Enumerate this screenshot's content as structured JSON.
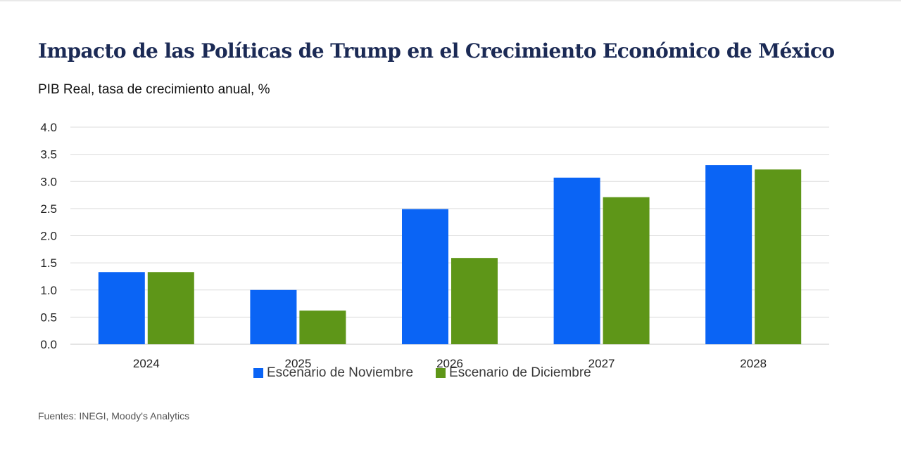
{
  "header": {
    "title": "Impacto de las Políticas de Trump en el Crecimiento Económico de México",
    "subtitle": "PIB Real, tasa de crecimiento anual,  %"
  },
  "footer": {
    "source": "Fuentes: INEGI, Moody's Analytics"
  },
  "colors": {
    "noviembre": "#0a64f5",
    "diciembre": "#5e9618",
    "grid": "#dcdcdc",
    "title": "#1b2a55"
  },
  "chart_data": {
    "type": "bar",
    "title": "Impacto de las Políticas de Trump en el Crecimiento Económico de México",
    "subtitle": "PIB Real, tasa de crecimiento anual,  %",
    "xlabel": "",
    "ylabel": "",
    "categories": [
      "2024",
      "2025",
      "2026",
      "2027",
      "2028"
    ],
    "series": [
      {
        "name": "Escenario de Noviembre",
        "values": [
          1.33,
          1.0,
          2.49,
          3.07,
          3.3
        ]
      },
      {
        "name": "Escenario de Diciembre",
        "values": [
          1.33,
          0.62,
          1.59,
          2.71,
          3.22
        ]
      }
    ],
    "ylim": [
      0,
      4.0
    ],
    "yticks": [
      "0.0",
      "0.5",
      "1.0",
      "1.5",
      "2.0",
      "2.5",
      "3.0",
      "3.5",
      "4.0"
    ],
    "grid": true,
    "legend": "bottom"
  }
}
